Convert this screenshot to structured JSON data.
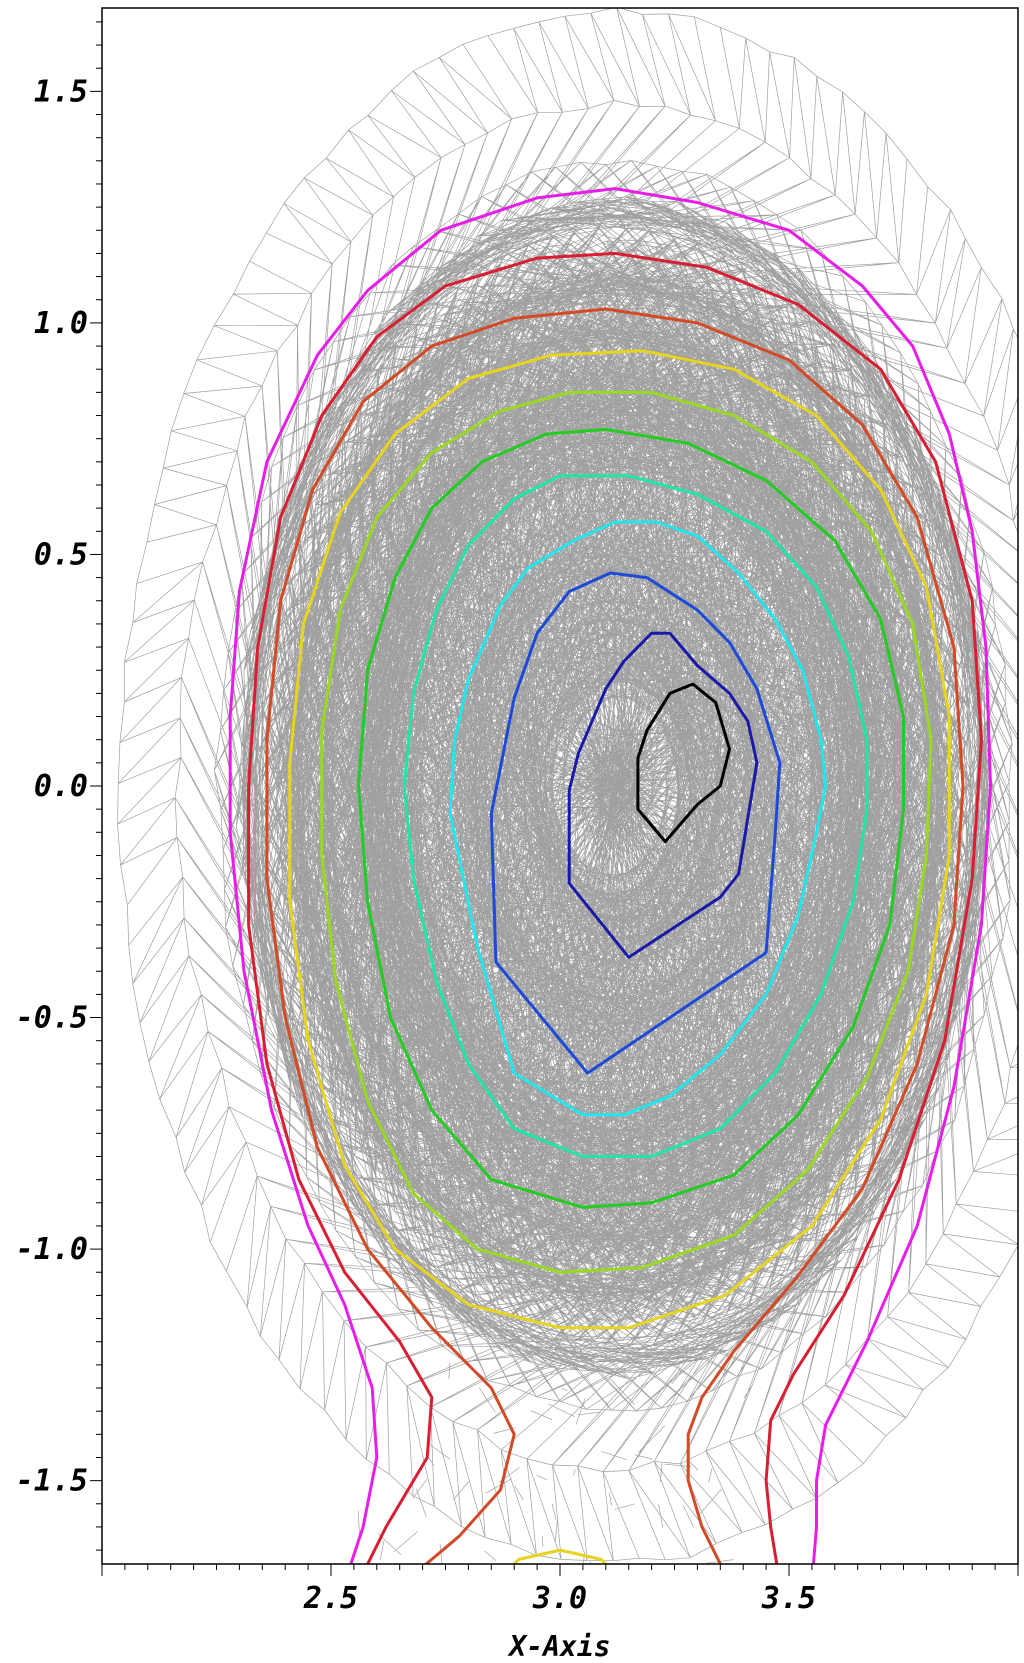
{
  "chart_data": {
    "type": "contour",
    "xlabel": "X-Axis",
    "ylabel": "",
    "xlim": [
      2.0,
      4.0
    ],
    "ylim": [
      -1.68,
      1.68
    ],
    "x_ticks": [
      {
        "value": 2.5,
        "label": "2.5"
      },
      {
        "value": 3.0,
        "label": "3.0"
      },
      {
        "value": 3.5,
        "label": "3.5"
      }
    ],
    "y_ticks": [
      {
        "value": 1.5,
        "label": "1.5"
      },
      {
        "value": 1.0,
        "label": "1.0"
      },
      {
        "value": 0.5,
        "label": "0.5"
      },
      {
        "value": 0.0,
        "label": "0.0"
      },
      {
        "value": -0.5,
        "label": "-0.5"
      },
      {
        "value": -1.0,
        "label": "-1.0"
      },
      {
        "value": -1.5,
        "label": "-1.5"
      }
    ],
    "grid": false,
    "mesh_color": "#a0a0a0",
    "contours": [
      {
        "color": "#000000",
        "points": [
          [
            3.23,
            -0.12
          ],
          [
            3.17,
            -0.05
          ],
          [
            3.17,
            0.06
          ],
          [
            3.19,
            0.12
          ],
          [
            3.24,
            0.2
          ],
          [
            3.29,
            0.22
          ],
          [
            3.34,
            0.18
          ],
          [
            3.37,
            0.08
          ],
          [
            3.35,
            0.0
          ],
          [
            3.3,
            -0.04
          ]
        ]
      },
      {
        "color": "#1a1aa8",
        "points": [
          [
            3.15,
            -0.37
          ],
          [
            3.02,
            -0.21
          ],
          [
            3.02,
            -0.01
          ],
          [
            3.04,
            0.07
          ],
          [
            3.1,
            0.21
          ],
          [
            3.14,
            0.27
          ],
          [
            3.2,
            0.33
          ],
          [
            3.24,
            0.33
          ],
          [
            3.3,
            0.26
          ],
          [
            3.37,
            0.2
          ],
          [
            3.41,
            0.14
          ],
          [
            3.43,
            0.05
          ],
          [
            3.39,
            -0.19
          ],
          [
            3.35,
            -0.24
          ]
        ]
      },
      {
        "color": "#1e4ad8",
        "points": [
          [
            3.06,
            -0.62
          ],
          [
            2.86,
            -0.38
          ],
          [
            2.85,
            -0.06
          ],
          [
            2.9,
            0.19
          ],
          [
            2.95,
            0.33
          ],
          [
            3.02,
            0.42
          ],
          [
            3.11,
            0.46
          ],
          [
            3.19,
            0.45
          ],
          [
            3.3,
            0.38
          ],
          [
            3.37,
            0.31
          ],
          [
            3.43,
            0.21
          ],
          [
            3.48,
            0.05
          ],
          [
            3.47,
            -0.1
          ],
          [
            3.45,
            -0.36
          ]
        ]
      },
      {
        "color": "#22e6ee",
        "points": [
          [
            3.05,
            -0.71
          ],
          [
            2.9,
            -0.62
          ],
          [
            2.82,
            -0.35
          ],
          [
            2.76,
            -0.06
          ],
          [
            2.77,
            0.1
          ],
          [
            2.8,
            0.23
          ],
          [
            2.87,
            0.39
          ],
          [
            2.93,
            0.47
          ],
          [
            3.03,
            0.53
          ],
          [
            3.12,
            0.57
          ],
          [
            3.21,
            0.57
          ],
          [
            3.3,
            0.54
          ],
          [
            3.39,
            0.46
          ],
          [
            3.47,
            0.36
          ],
          [
            3.53,
            0.25
          ],
          [
            3.57,
            0.1
          ],
          [
            3.58,
            0.0
          ],
          [
            3.56,
            -0.1
          ],
          [
            3.52,
            -0.28
          ],
          [
            3.45,
            -0.45
          ],
          [
            3.35,
            -0.58
          ],
          [
            3.24,
            -0.67
          ],
          [
            3.14,
            -0.71
          ]
        ]
      },
      {
        "color": "#1ee6a8",
        "points": [
          [
            3.05,
            -0.8
          ],
          [
            2.9,
            -0.74
          ],
          [
            2.8,
            -0.6
          ],
          [
            2.73,
            -0.42
          ],
          [
            2.68,
            -0.2
          ],
          [
            2.66,
            0.0
          ],
          [
            2.68,
            0.2
          ],
          [
            2.73,
            0.38
          ],
          [
            2.8,
            0.52
          ],
          [
            2.9,
            0.62
          ],
          [
            3.0,
            0.67
          ],
          [
            3.15,
            0.67
          ],
          [
            3.3,
            0.63
          ],
          [
            3.45,
            0.55
          ],
          [
            3.56,
            0.43
          ],
          [
            3.63,
            0.28
          ],
          [
            3.67,
            0.1
          ],
          [
            3.67,
            -0.05
          ],
          [
            3.64,
            -0.25
          ],
          [
            3.57,
            -0.45
          ],
          [
            3.47,
            -0.62
          ],
          [
            3.35,
            -0.74
          ],
          [
            3.2,
            -0.8
          ]
        ]
      },
      {
        "color": "#22cc22",
        "points": [
          [
            3.05,
            -0.91
          ],
          [
            2.85,
            -0.85
          ],
          [
            2.72,
            -0.7
          ],
          [
            2.63,
            -0.5
          ],
          [
            2.58,
            -0.25
          ],
          [
            2.56,
            0.0
          ],
          [
            2.58,
            0.25
          ],
          [
            2.64,
            0.45
          ],
          [
            2.72,
            0.6
          ],
          [
            2.83,
            0.7
          ],
          [
            2.97,
            0.76
          ],
          [
            3.1,
            0.77
          ],
          [
            3.28,
            0.74
          ],
          [
            3.45,
            0.66
          ],
          [
            3.6,
            0.53
          ],
          [
            3.7,
            0.36
          ],
          [
            3.75,
            0.15
          ],
          [
            3.75,
            -0.05
          ],
          [
            3.72,
            -0.3
          ],
          [
            3.64,
            -0.52
          ],
          [
            3.52,
            -0.71
          ],
          [
            3.38,
            -0.84
          ],
          [
            3.2,
            -0.9
          ]
        ]
      },
      {
        "color": "#9ad822",
        "points": [
          [
            3.0,
            -1.05
          ],
          [
            2.82,
            -1.0
          ],
          [
            2.68,
            -0.88
          ],
          [
            2.58,
            -0.68
          ],
          [
            2.51,
            -0.42
          ],
          [
            2.48,
            -0.15
          ],
          [
            2.48,
            0.12
          ],
          [
            2.52,
            0.38
          ],
          [
            2.6,
            0.58
          ],
          [
            2.72,
            0.72
          ],
          [
            2.87,
            0.81
          ],
          [
            3.02,
            0.85
          ],
          [
            3.2,
            0.85
          ],
          [
            3.38,
            0.8
          ],
          [
            3.55,
            0.7
          ],
          [
            3.68,
            0.55
          ],
          [
            3.77,
            0.35
          ],
          [
            3.81,
            0.1
          ],
          [
            3.8,
            -0.15
          ],
          [
            3.76,
            -0.4
          ],
          [
            3.67,
            -0.63
          ],
          [
            3.54,
            -0.83
          ],
          [
            3.38,
            -0.97
          ],
          [
            3.18,
            -1.04
          ]
        ]
      },
      {
        "color": "#e6d41e",
        "points": [
          [
            3.0,
            -1.17
          ],
          [
            2.8,
            -1.12
          ],
          [
            2.64,
            -1.0
          ],
          [
            2.53,
            -0.82
          ],
          [
            2.45,
            -0.55
          ],
          [
            2.41,
            -0.25
          ],
          [
            2.41,
            0.05
          ],
          [
            2.44,
            0.35
          ],
          [
            2.52,
            0.59
          ],
          [
            2.64,
            0.76
          ],
          [
            2.8,
            0.88
          ],
          [
            2.98,
            0.93
          ],
          [
            3.18,
            0.94
          ],
          [
            3.38,
            0.9
          ],
          [
            3.56,
            0.8
          ],
          [
            3.7,
            0.64
          ],
          [
            3.8,
            0.43
          ],
          [
            3.85,
            0.15
          ],
          [
            3.85,
            -0.15
          ],
          [
            3.8,
            -0.45
          ],
          [
            3.7,
            -0.72
          ],
          [
            3.55,
            -0.95
          ],
          [
            3.36,
            -1.1
          ],
          [
            3.15,
            -1.17
          ]
        ]
      },
      {
        "color": "#e6d41e",
        "points": [
          [
            2.86,
            -1.72
          ],
          [
            2.91,
            -1.67
          ],
          [
            3.0,
            -1.65
          ],
          [
            3.09,
            -1.67
          ],
          [
            3.14,
            -1.72
          ]
        ]
      },
      {
        "color": "#d24a26",
        "points": [
          [
            2.66,
            -1.72
          ],
          [
            2.78,
            -1.62
          ],
          [
            2.87,
            -1.52
          ],
          [
            2.9,
            -1.4
          ],
          [
            2.85,
            -1.3
          ],
          [
            2.72,
            -1.17
          ],
          [
            2.58,
            -1.0
          ],
          [
            2.47,
            -0.78
          ],
          [
            2.4,
            -0.5
          ],
          [
            2.36,
            -0.2
          ],
          [
            2.36,
            0.1
          ],
          [
            2.39,
            0.4
          ],
          [
            2.46,
            0.64
          ],
          [
            2.57,
            0.83
          ],
          [
            2.72,
            0.95
          ],
          [
            2.9,
            1.01
          ],
          [
            3.1,
            1.03
          ],
          [
            3.3,
            1.0
          ],
          [
            3.5,
            0.92
          ],
          [
            3.66,
            0.78
          ],
          [
            3.78,
            0.58
          ],
          [
            3.86,
            0.3
          ],
          [
            3.88,
            0.0
          ],
          [
            3.86,
            -0.3
          ],
          [
            3.78,
            -0.6
          ],
          [
            3.66,
            -0.87
          ],
          [
            3.51,
            -1.07
          ],
          [
            3.38,
            -1.22
          ],
          [
            3.31,
            -1.32
          ],
          [
            3.28,
            -1.4
          ],
          [
            3.28,
            -1.5
          ],
          [
            3.31,
            -1.6
          ],
          [
            3.37,
            -1.72
          ]
        ]
      },
      {
        "color": "#d81e32",
        "points": [
          [
            2.56,
            -1.72
          ],
          [
            2.62,
            -1.6
          ],
          [
            2.71,
            -1.45
          ],
          [
            2.72,
            -1.32
          ],
          [
            2.65,
            -1.2
          ],
          [
            2.53,
            -1.05
          ],
          [
            2.43,
            -0.85
          ],
          [
            2.36,
            -0.6
          ],
          [
            2.32,
            -0.3
          ],
          [
            2.32,
            0.0
          ],
          [
            2.34,
            0.3
          ],
          [
            2.39,
            0.58
          ],
          [
            2.48,
            0.8
          ],
          [
            2.6,
            0.97
          ],
          [
            2.75,
            1.08
          ],
          [
            2.95,
            1.14
          ],
          [
            3.12,
            1.15
          ],
          [
            3.32,
            1.12
          ],
          [
            3.52,
            1.04
          ],
          [
            3.7,
            0.9
          ],
          [
            3.82,
            0.7
          ],
          [
            3.9,
            0.4
          ],
          [
            3.92,
            0.1
          ],
          [
            3.9,
            -0.2
          ],
          [
            3.84,
            -0.55
          ],
          [
            3.74,
            -0.85
          ],
          [
            3.62,
            -1.1
          ],
          [
            3.51,
            -1.27
          ],
          [
            3.46,
            -1.37
          ],
          [
            3.45,
            -1.5
          ],
          [
            3.46,
            -1.6
          ],
          [
            3.48,
            -1.72
          ]
        ]
      },
      {
        "color": "#e81ee8",
        "points": [
          [
            2.53,
            -1.72
          ],
          [
            2.57,
            -1.6
          ],
          [
            2.6,
            -1.45
          ],
          [
            2.59,
            -1.3
          ],
          [
            2.53,
            -1.12
          ],
          [
            2.45,
            -0.95
          ],
          [
            2.37,
            -0.7
          ],
          [
            2.31,
            -0.4
          ],
          [
            2.28,
            -0.1
          ],
          [
            2.28,
            0.15
          ],
          [
            2.3,
            0.42
          ],
          [
            2.36,
            0.7
          ],
          [
            2.47,
            0.93
          ],
          [
            2.58,
            1.07
          ],
          [
            2.74,
            1.2
          ],
          [
            2.95,
            1.27
          ],
          [
            3.12,
            1.29
          ],
          [
            3.3,
            1.26
          ],
          [
            3.5,
            1.2
          ],
          [
            3.66,
            1.08
          ],
          [
            3.77,
            0.95
          ],
          [
            3.85,
            0.76
          ],
          [
            3.9,
            0.55
          ],
          [
            3.93,
            0.3
          ],
          [
            3.94,
            0.0
          ],
          [
            3.92,
            -0.3
          ],
          [
            3.86,
            -0.65
          ],
          [
            3.78,
            -0.95
          ],
          [
            3.67,
            -1.2
          ],
          [
            3.58,
            -1.38
          ],
          [
            3.56,
            -1.5
          ],
          [
            3.56,
            -1.6
          ],
          [
            3.55,
            -1.72
          ]
        ]
      }
    ]
  }
}
